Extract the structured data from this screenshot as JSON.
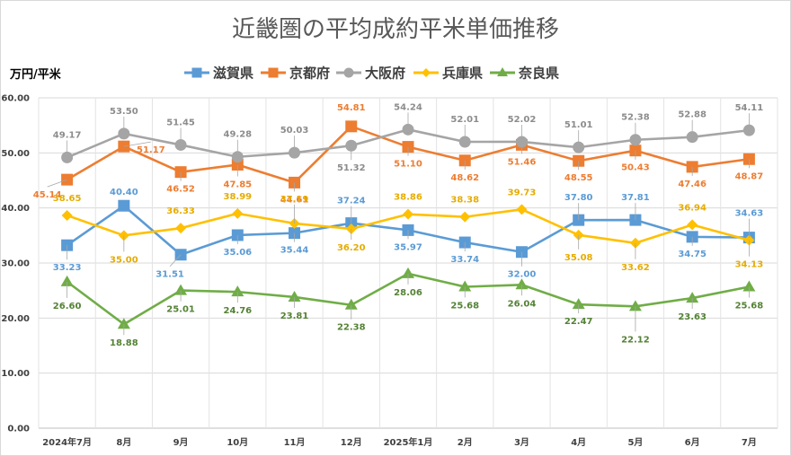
{
  "chart_data": {
    "type": "line",
    "title": "近畿圏の平均成約平米単価推移",
    "ylabel": "万円/平米",
    "ylim": [
      0,
      60
    ],
    "yticks": [
      "0.00",
      "10.00",
      "20.00",
      "30.00",
      "40.00",
      "50.00",
      "60.00"
    ],
    "categories": [
      "2024年7月",
      "8月",
      "9月",
      "10月",
      "11月",
      "12月",
      "2025年1月",
      "2月",
      "3月",
      "4月",
      "5月",
      "6月",
      "7月"
    ],
    "grid": true,
    "legend_position": "top",
    "series": [
      {
        "name": "滋賀県",
        "color": "#5B9BD5",
        "marker": "square",
        "label_color": "#5B9BD5",
        "values": [
          33.23,
          40.4,
          31.51,
          35.06,
          35.44,
          37.24,
          35.97,
          33.74,
          32.0,
          37.8,
          37.81,
          34.75,
          34.63
        ],
        "label_text": [
          "33.23",
          "40.40",
          "31.51",
          "35.06",
          "35.44",
          "37.24",
          "35.97",
          "33.74",
          "32.00",
          "37.80",
          "37.81",
          "34.75",
          "34.63"
        ]
      },
      {
        "name": "京都府",
        "color": "#ED7D31",
        "marker": "square",
        "label_color": "#ED7D31",
        "values": [
          45.14,
          51.17,
          46.52,
          47.85,
          44.61,
          54.81,
          51.1,
          48.62,
          51.46,
          48.55,
          50.43,
          47.46,
          48.87
        ],
        "label_text": [
          "45.14",
          "51.17",
          "46.52",
          "47.85",
          "44.61",
          "54.81",
          "51.10",
          "48.62",
          "51.46",
          "48.55",
          "50.43",
          "47.46",
          "48.87"
        ]
      },
      {
        "name": "大阪府",
        "color": "#A5A5A5",
        "marker": "circle",
        "label_color": "#8C8C8C",
        "values": [
          49.17,
          53.5,
          51.45,
          49.28,
          50.03,
          51.32,
          54.24,
          52.01,
          52.02,
          51.01,
          52.38,
          52.88,
          54.11
        ],
        "label_text": [
          "49.17",
          "53.50",
          "51.45",
          "49.28",
          "50.03",
          "51.32",
          "54.24",
          "52.01",
          "52.02",
          "51.01",
          "52.38",
          "52.88",
          "54.11"
        ]
      },
      {
        "name": "兵庫県",
        "color": "#FFC000",
        "marker": "diamond",
        "label_color": "#E6AC00",
        "values": [
          38.65,
          35.0,
          36.33,
          38.99,
          37.19,
          36.2,
          38.86,
          38.38,
          39.73,
          35.08,
          33.62,
          36.94,
          34.13
        ],
        "label_text": [
          "38.65",
          "35.00",
          "36.33",
          "38.99",
          "37.19",
          "36.20",
          "38.86",
          "38.38",
          "39.73",
          "35.08",
          "33.62",
          "36.94",
          "34.13"
        ]
      },
      {
        "name": "奈良県",
        "color": "#70AD47",
        "marker": "triangle",
        "label_color": "#548235",
        "values": [
          26.6,
          18.88,
          25.01,
          24.76,
          23.81,
          22.38,
          28.06,
          25.68,
          26.04,
          22.47,
          22.12,
          23.63,
          25.68
        ],
        "label_text": [
          "26.60",
          "18.88",
          "25.01",
          "24.76",
          "23.81",
          "22.38",
          "28.06",
          "25.68",
          "26.04",
          "22.47",
          "22.12",
          "23.63",
          "25.68"
        ]
      }
    ]
  }
}
